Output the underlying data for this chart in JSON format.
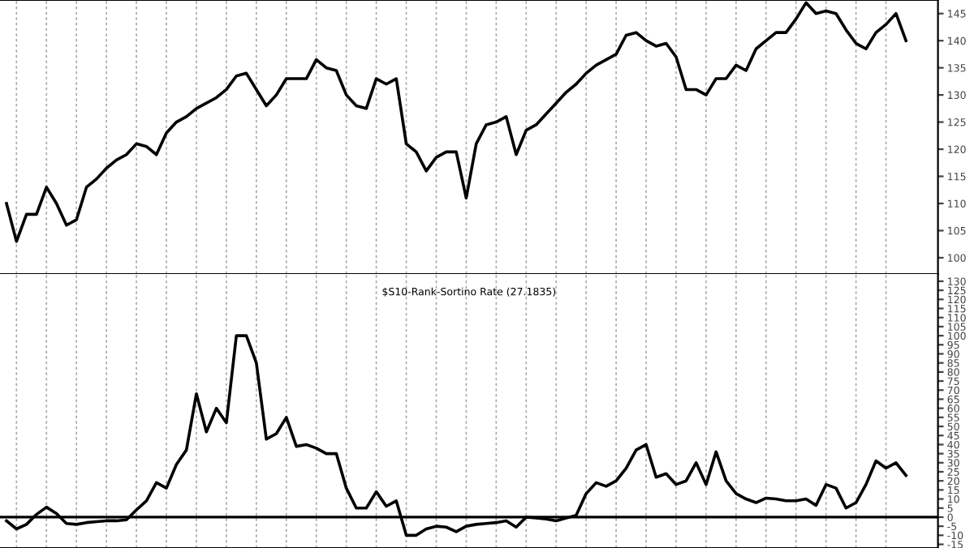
{
  "chart_data": [
    {
      "type": "line",
      "ylim": [
        97,
        147.5
      ],
      "yticks": [
        100,
        105,
        110,
        115,
        120,
        125,
        130,
        135,
        140,
        145
      ],
      "categories": [
        null,
        null,
        null,
        null,
        null,
        null,
        null,
        null,
        null,
        null,
        null,
        null,
        null,
        null,
        null,
        null,
        null,
        null,
        null,
        null,
        null,
        null,
        null,
        null,
        null,
        null,
        null,
        null,
        null,
        null,
        null,
        null,
        null,
        null,
        null,
        null,
        null,
        null,
        null,
        null,
        null,
        null,
        null,
        null,
        null,
        null,
        null,
        null,
        null,
        null,
        null,
        null,
        null,
        null,
        null,
        null,
        null,
        null,
        null,
        null,
        null,
        null,
        null,
        null,
        null,
        null,
        null,
        null,
        null,
        null,
        null,
        null,
        null,
        null,
        null,
        null,
        null,
        null,
        null,
        null,
        null,
        null,
        null,
        null,
        null,
        null,
        null,
        null,
        null,
        null,
        null
      ],
      "grid": "x",
      "tick_labels": "y",
      "line_style": "solid",
      "marker": "none",
      "series": [
        {
          "color": "#000000",
          "values": [
            110,
            103,
            108,
            108,
            113,
            110,
            106,
            107,
            113,
            114.5,
            116.5,
            118,
            119,
            121,
            120.5,
            119,
            123,
            125,
            126,
            127.5,
            128.5,
            129.5,
            131,
            133.5,
            134,
            131,
            128,
            130,
            133,
            133,
            133,
            136.5,
            135,
            134.5,
            130,
            128,
            127.5,
            133,
            132,
            133,
            121,
            119.5,
            116,
            118.5,
            119.5,
            119.5,
            111,
            121,
            124.5,
            125,
            126,
            119,
            123.5,
            124.5,
            126.5,
            128.5,
            130.5,
            132,
            134,
            135.5,
            136.5,
            137.5,
            141,
            141.5,
            140,
            139,
            139.5,
            137,
            131,
            131,
            130,
            133,
            133,
            135.5,
            134.5,
            138.5,
            140,
            141.5,
            141.5,
            144,
            147,
            145,
            145.5,
            145,
            142,
            139.5,
            138.5,
            141.5,
            143,
            145,
            140
          ]
        }
      ]
    },
    {
      "type": "line",
      "title": "$S10-Rank-Sortino Rate (27.1835)",
      "ylim": [
        -17,
        134
      ],
      "yticks": [
        -15,
        -10,
        -5,
        0,
        5,
        10,
        15,
        20,
        25,
        30,
        35,
        40,
        45,
        50,
        55,
        60,
        65,
        70,
        75,
        80,
        85,
        90,
        95,
        100,
        105,
        110,
        115,
        120,
        125,
        130
      ],
      "categories": [
        null,
        null,
        null,
        null,
        null,
        null,
        null,
        null,
        null,
        null,
        null,
        null,
        null,
        null,
        null,
        null,
        null,
        null,
        null,
        null,
        null,
        null,
        null,
        null,
        null,
        null,
        null,
        null,
        null,
        null,
        null,
        null,
        null,
        null,
        null,
        null,
        null,
        null,
        null,
        null,
        null,
        null,
        null,
        null,
        null,
        null,
        null,
        null,
        null,
        null,
        null,
        null,
        null,
        null,
        null,
        null,
        null,
        null,
        null,
        null,
        null,
        null,
        null,
        null,
        null,
        null,
        null,
        null,
        null,
        null,
        null,
        null,
        null,
        null,
        null,
        null,
        null,
        null,
        null,
        null,
        null,
        null,
        null,
        null,
        null,
        null,
        null,
        null,
        null,
        null,
        null
      ],
      "grid": "x",
      "tick_labels": "y",
      "line_style": "solid",
      "marker": "none",
      "ref_lines": [
        {
          "axis": "y",
          "value": 0,
          "color": "#000000",
          "line_style": "solid"
        }
      ],
      "series": [
        {
          "color": "#000000",
          "values": [
            -2,
            -6.5,
            -4,
            1.5,
            5.5,
            2,
            -3.5,
            -4,
            -3,
            -2.5,
            -2,
            -2,
            -1.5,
            4,
            9,
            19,
            16,
            29,
            37,
            68,
            47,
            60,
            52,
            100,
            100,
            85,
            43,
            46,
            55,
            39,
            40,
            38,
            35,
            35,
            16,
            5,
            5,
            14,
            6,
            9,
            -10,
            -10,
            -6.5,
            -5,
            -5.5,
            -8,
            -5,
            -4,
            -3.5,
            -3,
            -2,
            -5.5,
            0,
            -0.5,
            -1,
            -2,
            -0.5,
            1,
            13,
            19,
            17,
            20,
            27,
            37,
            40,
            22,
            24,
            18,
            20,
            30,
            18,
            36,
            20,
            13,
            10,
            8,
            10.5,
            10,
            9,
            9,
            10,
            6.5,
            18,
            16,
            5,
            8,
            18,
            31,
            27,
            30,
            23
          ]
        }
      ]
    }
  ]
}
